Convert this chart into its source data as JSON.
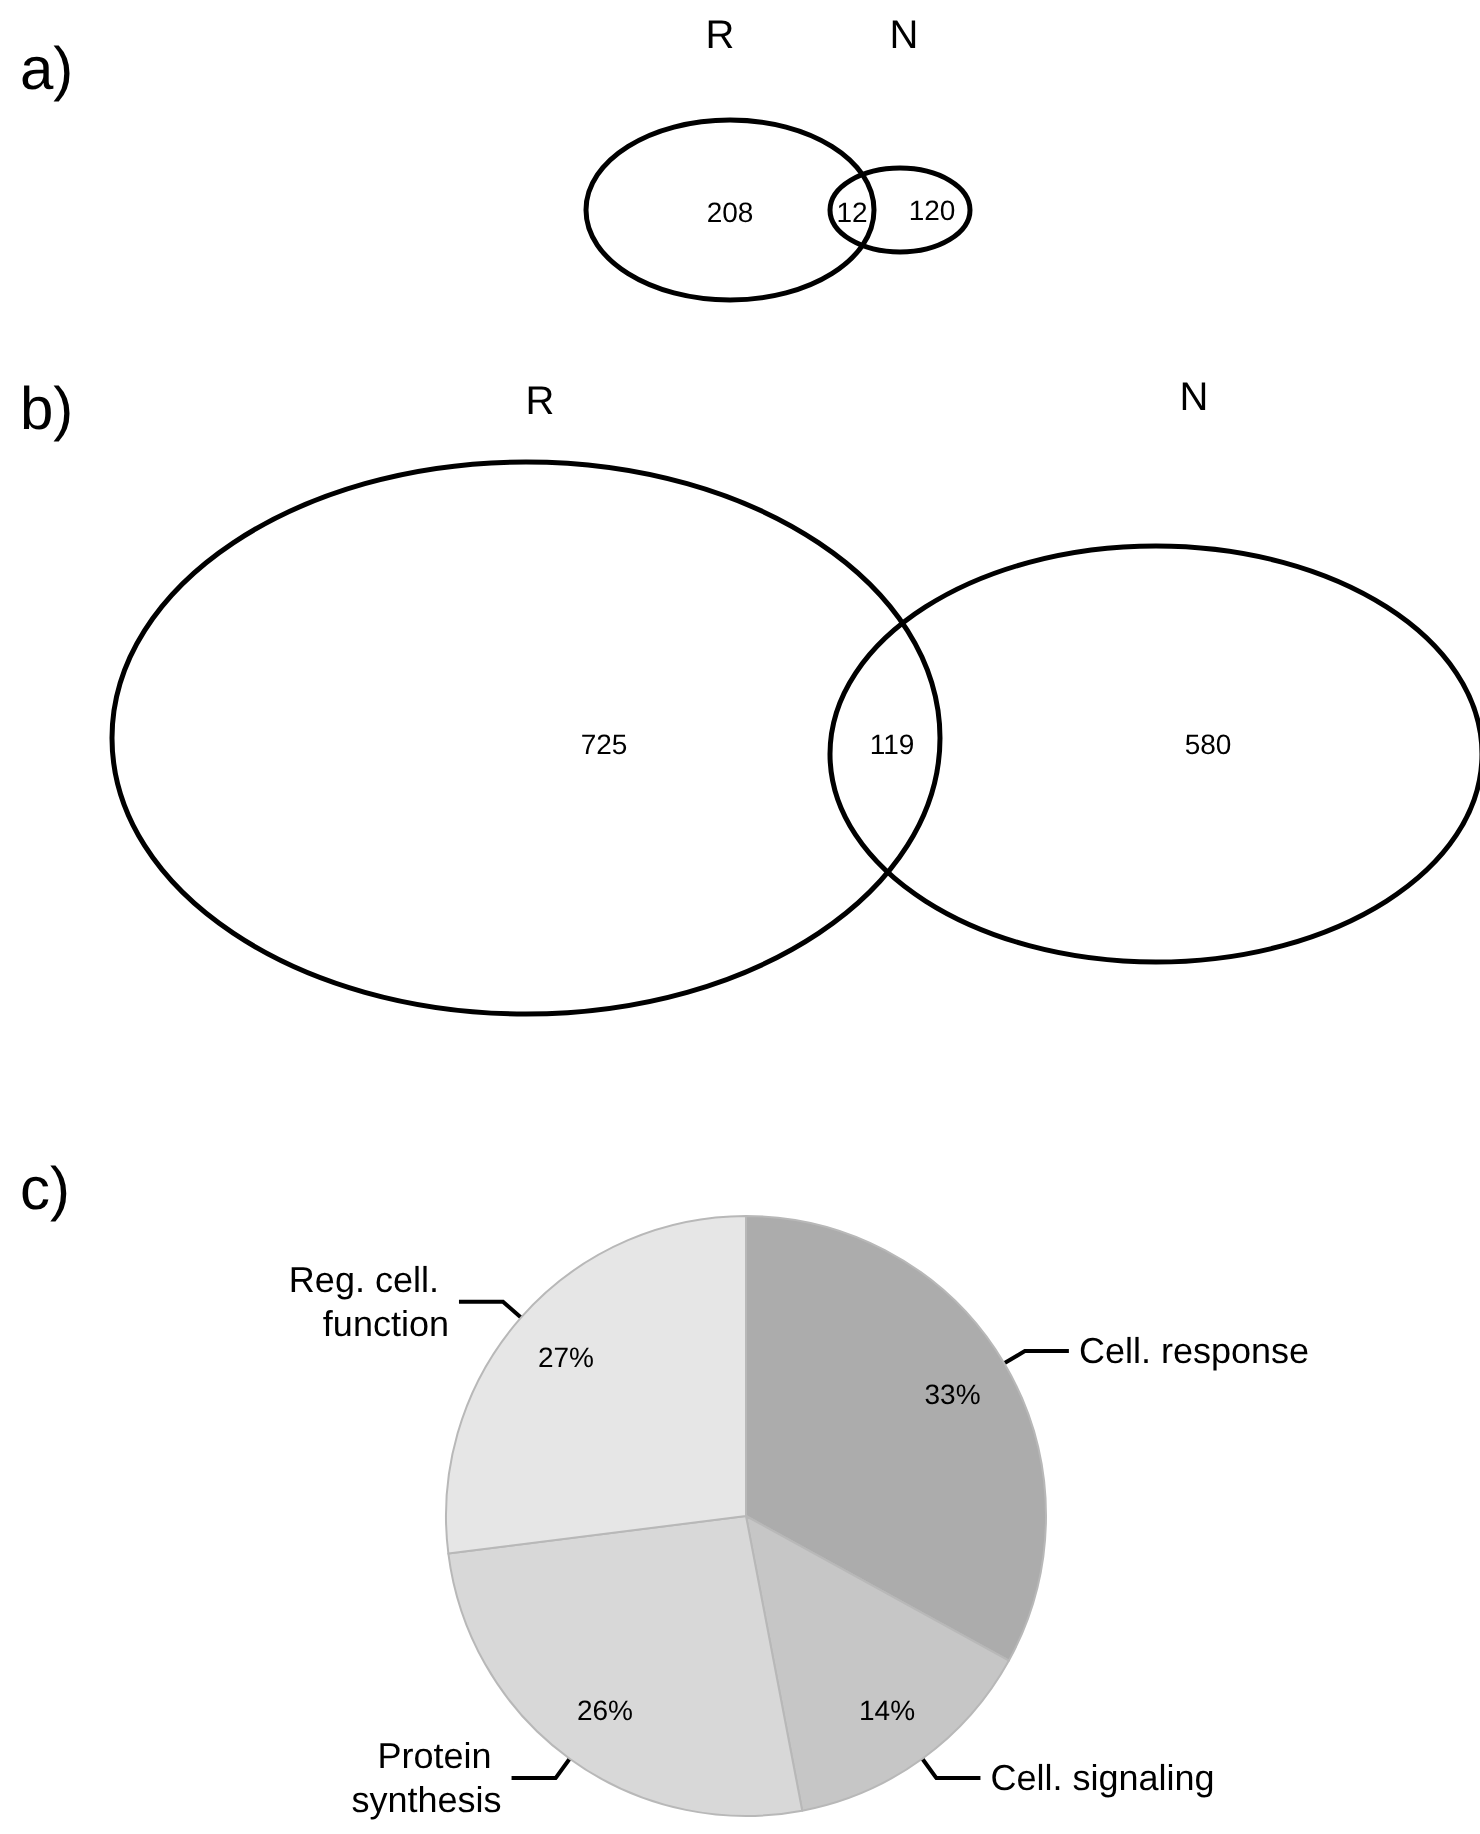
{
  "chart_data": [
    {
      "type": "other",
      "title": "a)",
      "categories": [
        "R",
        null,
        "N"
      ],
      "values": [
        208,
        12,
        120
      ],
      "data_labels": true
    },
    {
      "type": "other",
      "title": "b)",
      "categories": [
        "R",
        null,
        "N"
      ],
      "values": [
        725,
        119,
        580
      ],
      "data_labels": true
    },
    {
      "type": "pie",
      "title": "c)",
      "categories": [
        "Cell. response",
        "Cell. signaling",
        "Protein synthesis",
        "Reg. cell. function"
      ],
      "values": [
        33,
        14,
        26,
        27
      ],
      "colors": [
        "#acacac",
        "#c6c6c6",
        "#d8d8d8",
        "#e6e6e6"
      ],
      "value_labels": [
        "33%",
        "14%",
        "26%",
        "27%"
      ]
    }
  ]
}
